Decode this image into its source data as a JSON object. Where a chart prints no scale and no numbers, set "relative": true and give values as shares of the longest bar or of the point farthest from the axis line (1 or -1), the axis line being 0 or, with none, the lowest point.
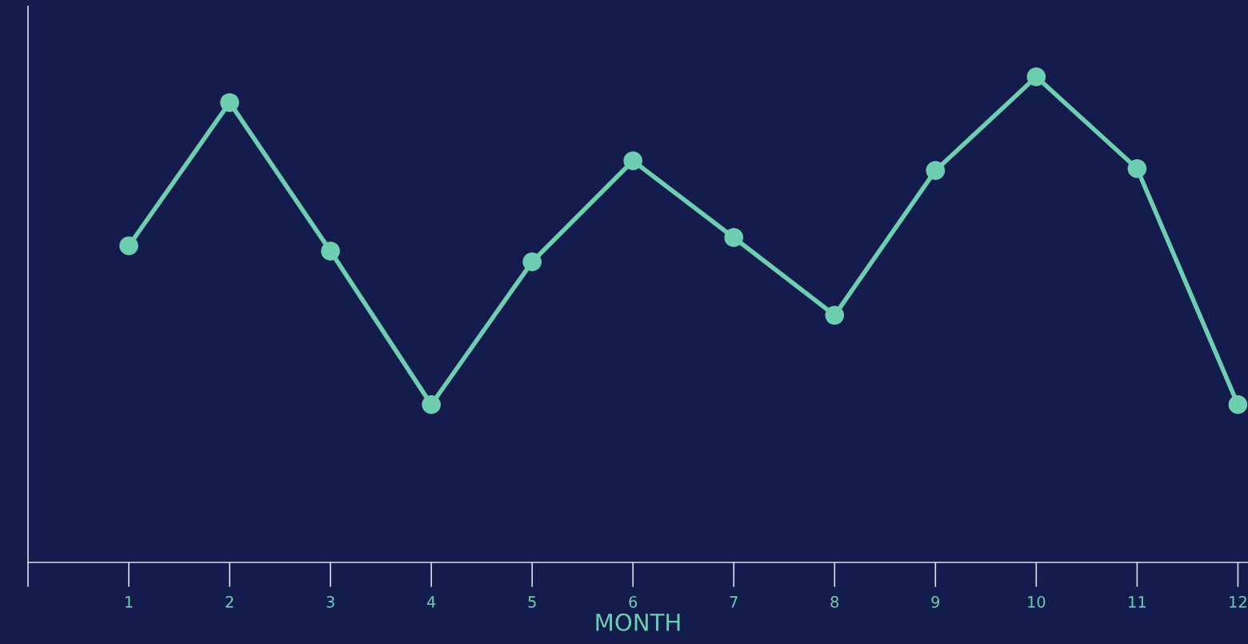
{
  "chart_data": {
    "type": "line",
    "relative": true,
    "xlabel": "MONTH",
    "x": [
      1,
      2,
      3,
      4,
      5,
      6,
      7,
      8,
      9,
      10,
      11,
      12
    ],
    "values": [
      0.652,
      0.947,
      0.641,
      0.325,
      0.619,
      0.827,
      0.669,
      0.509,
      0.807,
      1,
      0.811,
      0.325
    ],
    "color": "#6dcfb0",
    "marker": "circle",
    "line_style": "solid",
    "xlim": [
      0,
      12.1
    ],
    "xticks": [
      {
        "value": 0,
        "label": null
      },
      1,
      2,
      3,
      4,
      5,
      6,
      7,
      8,
      9,
      10,
      11,
      12
    ],
    "grid": false
  }
}
